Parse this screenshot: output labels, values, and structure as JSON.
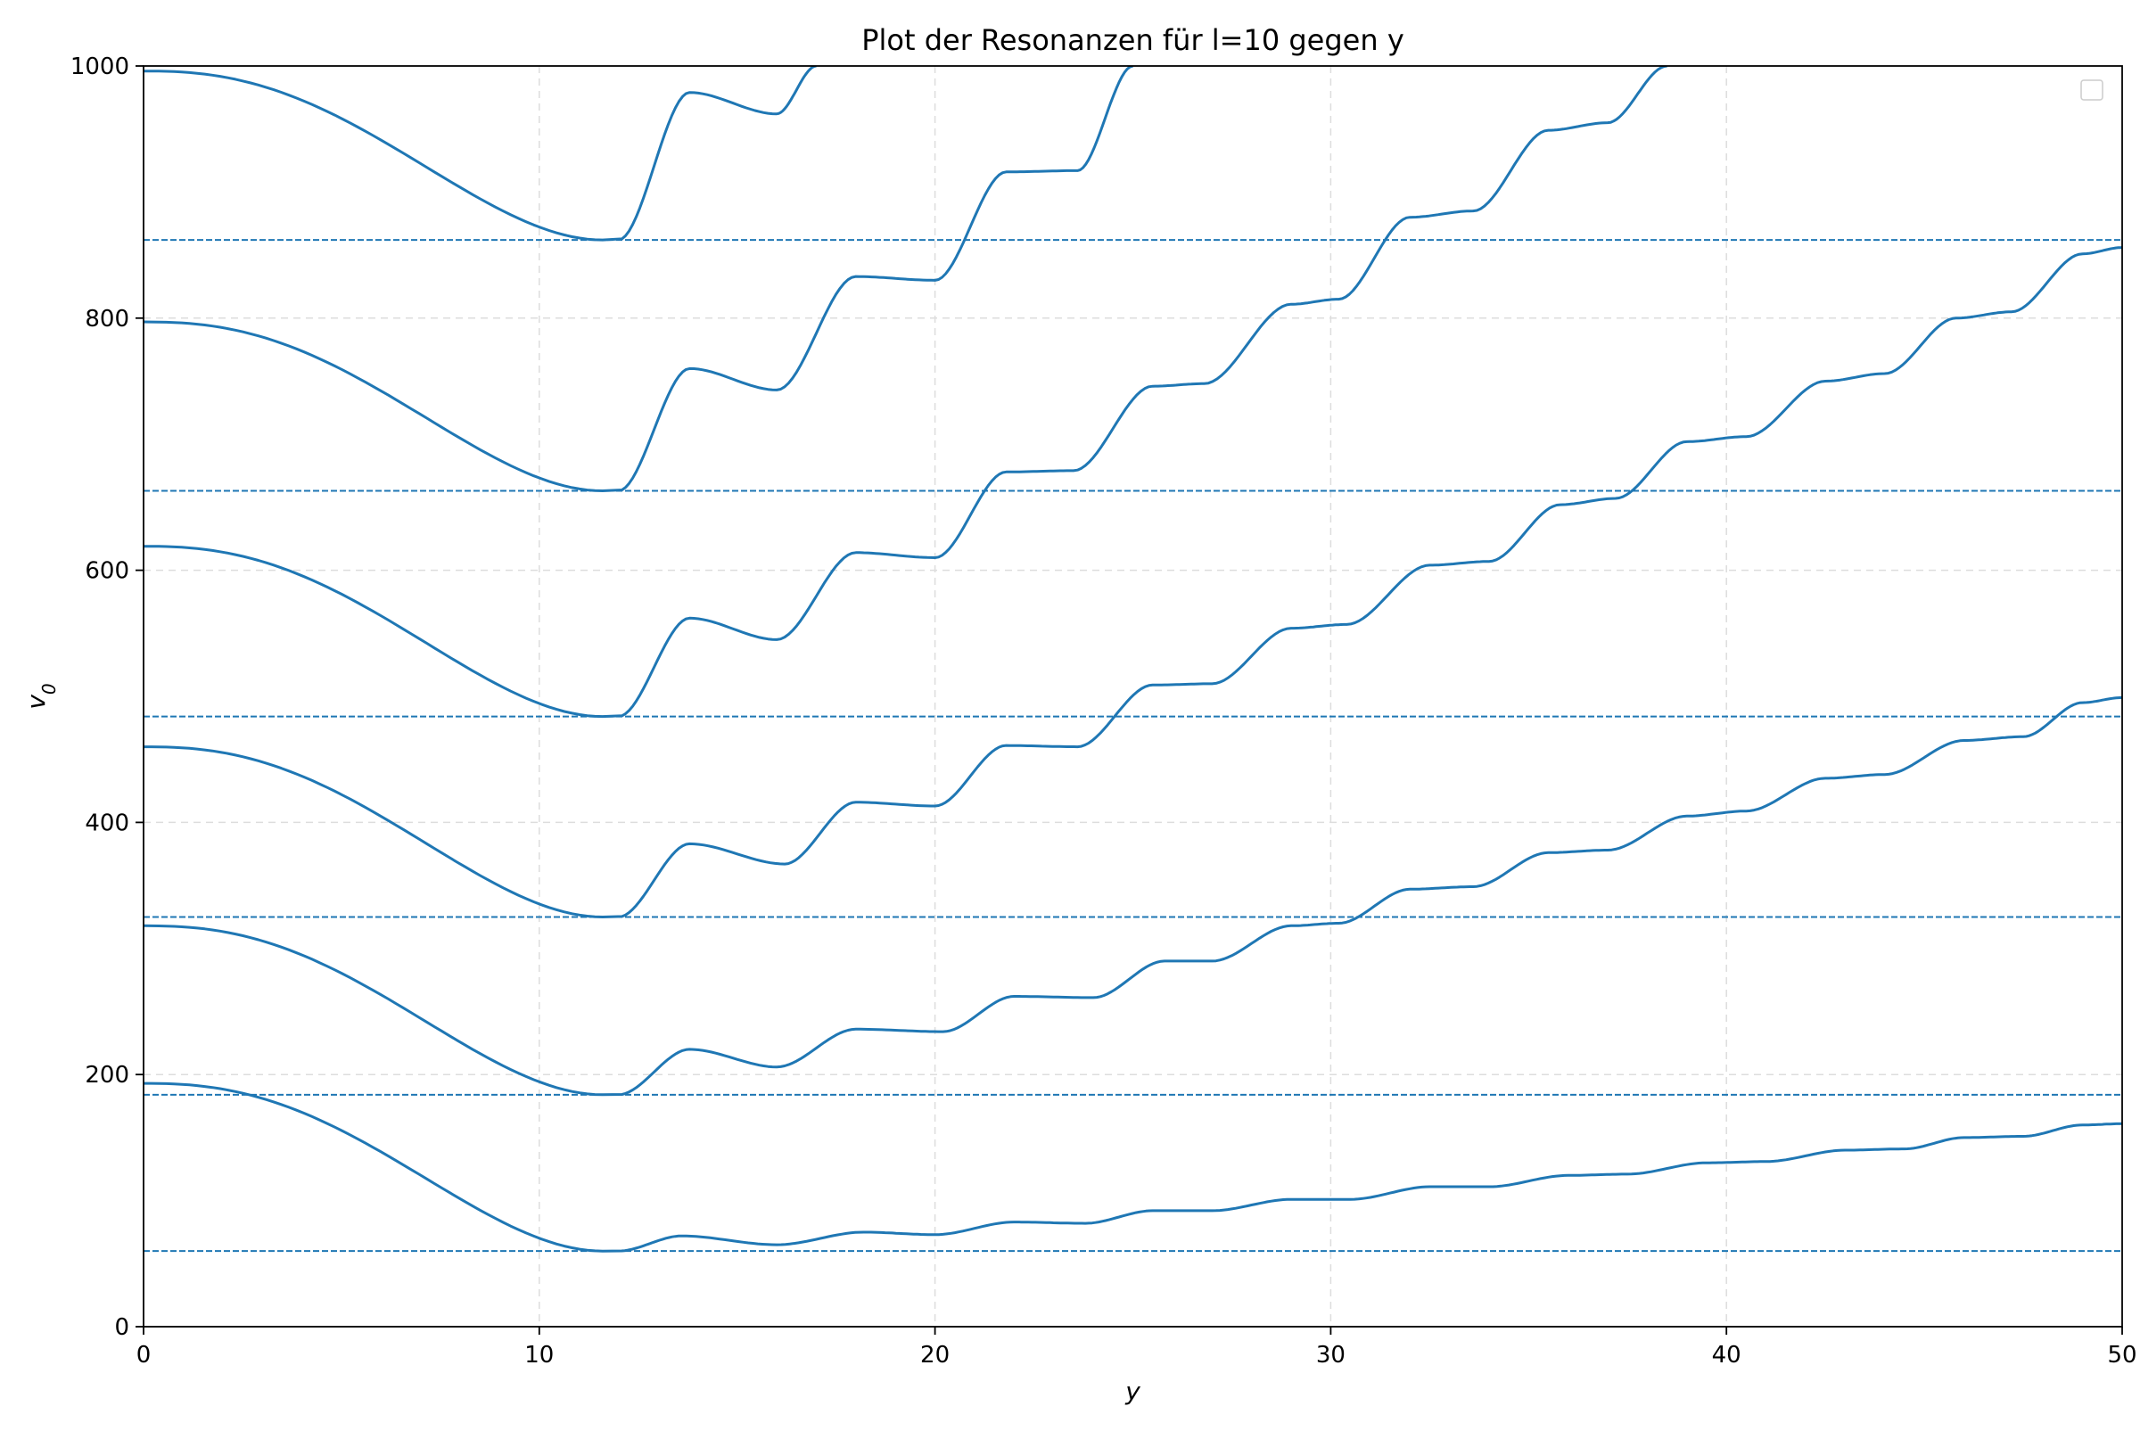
{
  "chart_data": {
    "type": "line",
    "title": "Plot der Resonanzen für l=10 gegen y",
    "xlabel": "y",
    "ylabel_main": "v",
    "ylabel_sub": "0",
    "xlim": [
      0,
      50
    ],
    "ylim": [
      0,
      1000
    ],
    "x_ticks": [
      0,
      10,
      20,
      30,
      40,
      50
    ],
    "y_ticks": [
      0,
      200,
      400,
      600,
      800,
      1000
    ],
    "grid": true,
    "legend": "top-right, empty",
    "line_color": "#1f77b4",
    "grid_color": "#dddddd",
    "series": [
      {
        "start": 193,
        "minimum": 60,
        "baseline": 73,
        "slope": 1.95,
        "amplitude": 5,
        "period": 4.5,
        "phase": 12.0,
        "raw": [
          [
            12,
            60
          ],
          [
            13.6,
            72
          ],
          [
            16,
            65
          ],
          [
            18.2,
            75
          ],
          [
            20,
            73
          ],
          [
            22,
            83
          ],
          [
            23.8,
            82
          ],
          [
            25.5,
            92
          ],
          [
            27,
            92
          ],
          [
            29,
            101
          ],
          [
            30.5,
            101
          ],
          [
            32.5,
            111
          ],
          [
            34,
            111
          ],
          [
            36,
            120
          ],
          [
            37.5,
            121
          ],
          [
            39.5,
            130
          ],
          [
            41,
            131
          ],
          [
            43,
            140
          ],
          [
            44.5,
            141
          ],
          [
            46,
            150
          ],
          [
            47.5,
            151
          ],
          [
            49,
            160
          ],
          [
            50,
            161
          ]
        ]
      },
      {
        "start": 318,
        "minimum": 184,
        "baseline": 205,
        "slope": 5.6,
        "amplitude": 12,
        "period": 4.5,
        "phase": 12.0,
        "raw": [
          [
            12,
            184
          ],
          [
            13.8,
            220
          ],
          [
            16,
            206
          ],
          [
            18,
            236
          ],
          [
            20.2,
            234
          ],
          [
            22,
            262
          ],
          [
            24,
            261
          ],
          [
            25.8,
            290
          ],
          [
            27,
            290
          ],
          [
            29,
            318
          ],
          [
            30.2,
            320
          ],
          [
            32,
            347
          ],
          [
            33.6,
            349
          ],
          [
            35.5,
            376
          ],
          [
            37,
            378
          ],
          [
            39,
            405
          ],
          [
            40.5,
            409
          ],
          [
            42.5,
            435
          ],
          [
            44,
            438
          ],
          [
            46,
            465
          ],
          [
            47.5,
            468
          ],
          [
            49,
            495
          ],
          [
            50,
            499
          ]
        ]
      },
      {
        "start": 460,
        "minimum": 325,
        "baseline": 360,
        "slope": 8.9,
        "amplitude": 18,
        "period": 4.5,
        "phase": 12.0,
        "raw": [
          [
            12,
            325
          ],
          [
            13.8,
            383
          ],
          [
            16.2,
            367
          ],
          [
            18,
            416
          ],
          [
            20,
            413
          ],
          [
            21.8,
            461
          ],
          [
            23.6,
            460
          ],
          [
            25.5,
            509
          ],
          [
            27,
            510
          ],
          [
            29,
            554
          ],
          [
            30.4,
            557
          ],
          [
            32.5,
            604
          ],
          [
            34,
            607
          ],
          [
            35.8,
            652
          ],
          [
            37.2,
            657
          ],
          [
            39,
            702
          ],
          [
            40.5,
            706
          ],
          [
            42.5,
            750
          ],
          [
            44,
            756
          ],
          [
            45.8,
            800
          ],
          [
            47.2,
            805
          ],
          [
            49,
            851
          ],
          [
            50,
            856
          ]
        ]
      },
      {
        "start": 619,
        "minimum": 484,
        "baseline": 528,
        "slope": 12.8,
        "amplitude": 22,
        "period": 4.5,
        "phase": 12.0,
        "raw": [
          [
            12,
            484
          ],
          [
            13.8,
            562
          ],
          [
            16,
            545
          ],
          [
            18,
            614
          ],
          [
            20,
            610
          ],
          [
            21.8,
            678
          ],
          [
            23.5,
            679
          ],
          [
            25.5,
            746
          ],
          [
            26.8,
            748
          ],
          [
            29,
            811
          ],
          [
            30.2,
            815
          ],
          [
            32,
            880
          ],
          [
            33.6,
            885
          ],
          [
            35.5,
            949
          ],
          [
            37,
            955
          ],
          [
            38.5,
            1000
          ]
        ]
      },
      {
        "start": 797,
        "minimum": 663,
        "baseline": 708,
        "slope": 16.5,
        "amplitude": 28,
        "period": 4.5,
        "phase": 12.0,
        "raw": [
          [
            12,
            663
          ],
          [
            13.8,
            760
          ],
          [
            16,
            743
          ],
          [
            18,
            833
          ],
          [
            20,
            830
          ],
          [
            21.8,
            916
          ],
          [
            23.6,
            917
          ],
          [
            25,
            1000
          ]
        ]
      },
      {
        "start": 996,
        "minimum": 862,
        "baseline": 910,
        "slope": 20.5,
        "amplitude": 30,
        "period": 4.5,
        "phase": 12.0,
        "raw": [
          [
            12,
            862
          ],
          [
            13.8,
            979
          ],
          [
            16,
            962
          ],
          [
            17,
            1000
          ]
        ]
      }
    ],
    "horizontal_lines": [
      60,
      184,
      325,
      484,
      663,
      862
    ]
  }
}
